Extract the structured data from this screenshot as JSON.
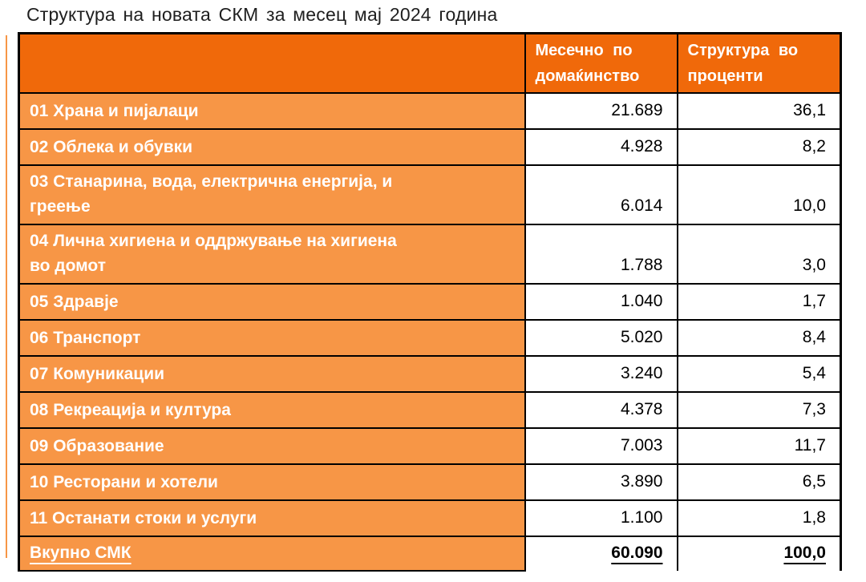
{
  "title": "Структура на новата СКМ за месец мај 2024 година",
  "table": {
    "headers": [
      "",
      "Месечно по\nдомаќинство",
      "Структура во\nпроценти"
    ],
    "rows": [
      {
        "label": "01 Храна и пијалаци",
        "monthly": "21.689",
        "percent": "36,1"
      },
      {
        "label": "02 Облека и обувки",
        "monthly": "4.928",
        "percent": "8,2"
      },
      {
        "label": "03 Станарина, вода, електрична енергија, и\nгреење",
        "monthly": "6.014",
        "percent": "10,0"
      },
      {
        "label": "04 Лична хигиена и оддржување на хигиена\nво домот",
        "monthly": "1.788",
        "percent": "3,0"
      },
      {
        "label": "05 Здравје",
        "monthly": "1.040",
        "percent": "1,7"
      },
      {
        "label": "06 Транспорт",
        "monthly": "5.020",
        "percent": "8,4"
      },
      {
        "label": "07 Комуникации",
        "monthly": "3.240",
        "percent": "5,4"
      },
      {
        "label": "08 Рекреација и култура",
        "monthly": "4.378",
        "percent": "7,3"
      },
      {
        "label": "09 Образование",
        "monthly": "7.003",
        "percent": "11,7"
      },
      {
        "label": "10 Ресторани и хотели",
        "monthly": "3.890",
        "percent": "6,5"
      },
      {
        "label": "11 Останати стоки и услуги",
        "monthly": "1.100",
        "percent": "1,8"
      }
    ],
    "total": {
      "label": "Вкупно СМК",
      "monthly": "60.090",
      "percent": "100,0"
    }
  },
  "colors": {
    "header_bg": "#F0690A",
    "row_bg": "#F79646",
    "border": "#000000",
    "label_text": "#FFFFFF",
    "value_text": "#000000"
  },
  "chart_data": {
    "type": "table",
    "title": "Структура на новата СКМ за месец мај 2024 година",
    "columns": [
      "",
      "Месечно по домаќинство",
      "Структура во проценти"
    ],
    "rows": [
      [
        "01 Храна и пијалаци",
        21689,
        36.1
      ],
      [
        "02 Облека и обувки",
        4928,
        8.2
      ],
      [
        "03 Станарина, вода, електрична енергија, и греење",
        6014,
        10.0
      ],
      [
        "04 Лична хигиена и оддржување на хигиена во домот",
        1788,
        3.0
      ],
      [
        "05 Здравје",
        1040,
        1.7
      ],
      [
        "06 Транспорт",
        5020,
        8.4
      ],
      [
        "07 Комуникации",
        3240,
        5.4
      ],
      [
        "08 Рекреација и култура",
        4378,
        7.3
      ],
      [
        "09 Образование",
        7003,
        11.7
      ],
      [
        "10 Ресторани и хотели",
        3890,
        6.5
      ],
      [
        "11 Останати стоки и услуги",
        1100,
        1.8
      ]
    ],
    "total_row": [
      "Вкупно СМК",
      60090,
      100.0
    ]
  }
}
